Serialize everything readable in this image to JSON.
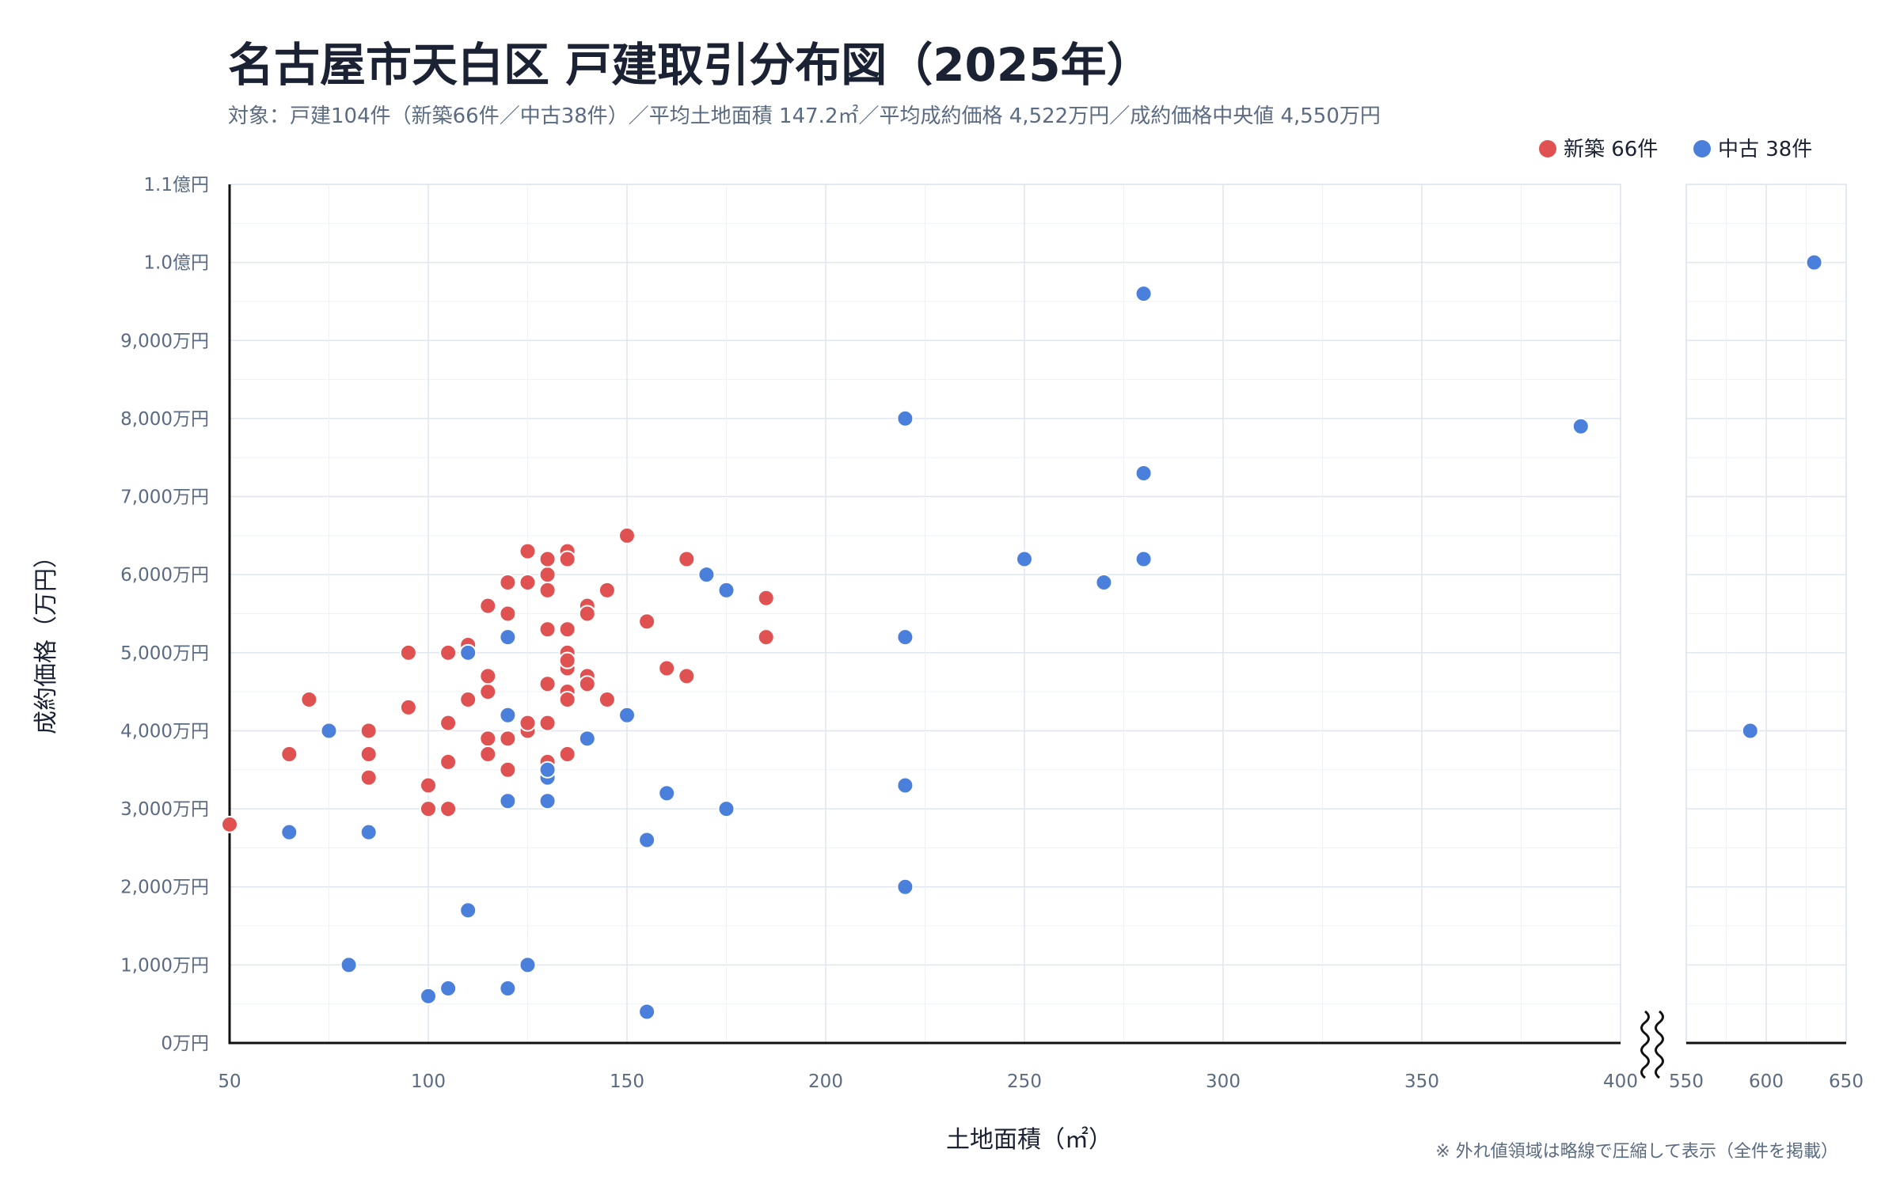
{
  "chart_data": {
    "type": "scatter",
    "title": "名古屋市天白区 戸建取引分布図（2025年）",
    "subtitle": "対象：戸建104件（新築66件／中古38件）／平均土地面積 147.2㎡／平均成約価格 4,522万円／成約価格中央値 4,550万円",
    "xlabel": "土地面積（㎡）",
    "ylabel": "成約価格（万円）",
    "note": "※ 外れ値領域は略線で圧縮して表示（全件を掲載）",
    "xlim_main": [
      50,
      400
    ],
    "xlim_outlier": [
      550,
      650
    ],
    "ylim": [
      0,
      11000
    ],
    "x_ticks_main": [
      {
        "value": 50,
        "label": "50"
      },
      {
        "value": 100,
        "label": "100"
      },
      {
        "value": 150,
        "label": "150"
      },
      {
        "value": 200,
        "label": "200"
      },
      {
        "value": 250,
        "label": "250"
      },
      {
        "value": 300,
        "label": "300"
      },
      {
        "value": 350,
        "label": "350"
      },
      {
        "value": 400,
        "label": "400"
      }
    ],
    "x_ticks_outlier": [
      {
        "value": 550,
        "label": "550"
      },
      {
        "value": 600,
        "label": "600"
      },
      {
        "value": 650,
        "label": "650"
      }
    ],
    "y_ticks": [
      {
        "value": 0,
        "label": "0万円"
      },
      {
        "value": 1000,
        "label": "1,000万円"
      },
      {
        "value": 2000,
        "label": "2,000万円"
      },
      {
        "value": 3000,
        "label": "3,000万円"
      },
      {
        "value": 4000,
        "label": "4,000万円"
      },
      {
        "value": 5000,
        "label": "5,000万円"
      },
      {
        "value": 6000,
        "label": "6,000万円"
      },
      {
        "value": 7000,
        "label": "7,000万円"
      },
      {
        "value": 8000,
        "label": "8,000万円"
      },
      {
        "value": 9000,
        "label": "9,000万円"
      },
      {
        "value": 10000,
        "label": "1.0億円"
      },
      {
        "value": 11000,
        "label": "1.1億円"
      }
    ],
    "grid": true,
    "legend_position": "top-right",
    "series": [
      {
        "name": "新築 66件",
        "color": "#e05252",
        "points": [
          [
            50,
            2800
          ],
          [
            65,
            3700
          ],
          [
            70,
            4400
          ],
          [
            85,
            4000
          ],
          [
            85,
            3700
          ],
          [
            85,
            3400
          ],
          [
            95,
            5000
          ],
          [
            95,
            4300
          ],
          [
            100,
            3300
          ],
          [
            100,
            3000
          ],
          [
            105,
            5000
          ],
          [
            105,
            4100
          ],
          [
            105,
            3600
          ],
          [
            105,
            3000
          ],
          [
            110,
            5100
          ],
          [
            110,
            4400
          ],
          [
            115,
            5600
          ],
          [
            115,
            4700
          ],
          [
            115,
            4500
          ],
          [
            115,
            3900
          ],
          [
            115,
            3700
          ],
          [
            120,
            5900
          ],
          [
            120,
            5500
          ],
          [
            120,
            3900
          ],
          [
            120,
            3500
          ],
          [
            125,
            6300
          ],
          [
            125,
            5900
          ],
          [
            125,
            4100
          ],
          [
            125,
            4000
          ],
          [
            130,
            6200
          ],
          [
            130,
            6000
          ],
          [
            130,
            5800
          ],
          [
            130,
            5300
          ],
          [
            130,
            4600
          ],
          [
            130,
            4100
          ],
          [
            130,
            3600
          ],
          [
            135,
            6300
          ],
          [
            135,
            6200
          ],
          [
            135,
            5300
          ],
          [
            135,
            5000
          ],
          [
            135,
            4900
          ],
          [
            135,
            4800
          ],
          [
            135,
            4500
          ],
          [
            135,
            4400
          ],
          [
            135,
            3700
          ],
          [
            140,
            5600
          ],
          [
            140,
            5500
          ],
          [
            140,
            4700
          ],
          [
            140,
            4600
          ],
          [
            145,
            5800
          ],
          [
            145,
            4400
          ],
          [
            150,
            6500
          ],
          [
            155,
            5400
          ],
          [
            160,
            4800
          ],
          [
            165,
            6200
          ],
          [
            165,
            4700
          ],
          [
            185,
            5700
          ],
          [
            185,
            5200
          ],
          [
            110,
            5100
          ],
          [
            120,
            5900
          ],
          [
            130,
            6200
          ],
          [
            135,
            4900
          ],
          [
            140,
            5500
          ],
          [
            115,
            4700
          ],
          [
            125,
            4100
          ],
          [
            130,
            5300
          ]
        ]
      },
      {
        "name": "中古 38件",
        "color": "#4a7fdb",
        "points": [
          [
            65,
            2700
          ],
          [
            75,
            4000
          ],
          [
            80,
            1000
          ],
          [
            85,
            2700
          ],
          [
            100,
            600
          ],
          [
            105,
            700
          ],
          [
            110,
            5000
          ],
          [
            110,
            1700
          ],
          [
            120,
            5200
          ],
          [
            120,
            4200
          ],
          [
            120,
            3100
          ],
          [
            120,
            700
          ],
          [
            125,
            1000
          ],
          [
            130,
            3400
          ],
          [
            130,
            3100
          ],
          [
            140,
            3900
          ],
          [
            150,
            4200
          ],
          [
            155,
            2600
          ],
          [
            155,
            400
          ],
          [
            160,
            3200
          ],
          [
            170,
            6000
          ],
          [
            175,
            5800
          ],
          [
            175,
            3000
          ],
          [
            220,
            8000
          ],
          [
            220,
            5200
          ],
          [
            220,
            3300
          ],
          [
            220,
            2000
          ],
          [
            250,
            6200
          ],
          [
            270,
            5900
          ],
          [
            280,
            9600
          ],
          [
            280,
            7300
          ],
          [
            280,
            6200
          ],
          [
            390,
            7900
          ],
          [
            590,
            4000
          ],
          [
            630,
            10000
          ],
          [
            130,
            3500
          ],
          [
            120,
            3100
          ],
          [
            110,
            5000
          ]
        ]
      }
    ]
  }
}
